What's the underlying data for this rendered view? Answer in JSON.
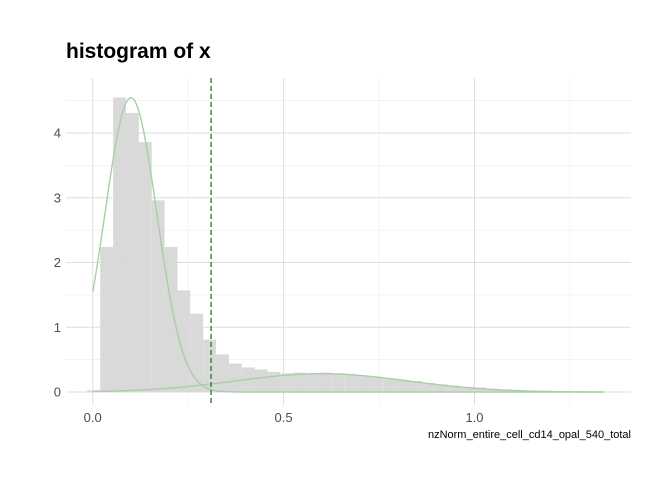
{
  "chart_data": {
    "type": "histogram",
    "title": "histogram of x",
    "xlabel": "nzNorm_entire_cell_cd14_opal_540_total",
    "ylabel": "",
    "xlim": [
      -0.07,
      1.41
    ],
    "ylim": [
      -0.2,
      4.85
    ],
    "x_ticks": [
      {
        "value": 0.0,
        "label": "0.0"
      },
      {
        "value": 0.5,
        "label": "0.5"
      },
      {
        "value": 1.0,
        "label": "1.0"
      }
    ],
    "y_ticks": [
      {
        "value": 0,
        "label": "0"
      },
      {
        "value": 1,
        "label": "1"
      },
      {
        "value": 2,
        "label": "2"
      },
      {
        "value": 3,
        "label": "3"
      },
      {
        "value": 4,
        "label": "4"
      }
    ],
    "grid": true,
    "bin_width": 0.0337,
    "bins": [
      {
        "x0": -0.014,
        "height": 0.03
      },
      {
        "x0": 0.0197,
        "height": 2.24
      },
      {
        "x0": 0.0534,
        "height": 4.55
      },
      {
        "x0": 0.0871,
        "height": 4.31
      },
      {
        "x0": 0.1208,
        "height": 3.86
      },
      {
        "x0": 0.1545,
        "height": 2.96
      },
      {
        "x0": 0.1882,
        "height": 2.24
      },
      {
        "x0": 0.2219,
        "height": 1.57
      },
      {
        "x0": 0.2556,
        "height": 1.21
      },
      {
        "x0": 0.2893,
        "height": 0.81
      },
      {
        "x0": 0.323,
        "height": 0.58
      },
      {
        "x0": 0.3567,
        "height": 0.44
      },
      {
        "x0": 0.3904,
        "height": 0.38
      },
      {
        "x0": 0.4241,
        "height": 0.35
      },
      {
        "x0": 0.4578,
        "height": 0.31
      },
      {
        "x0": 0.4915,
        "height": 0.29
      },
      {
        "x0": 0.5252,
        "height": 0.3
      },
      {
        "x0": 0.5589,
        "height": 0.28
      },
      {
        "x0": 0.5926,
        "height": 0.3
      },
      {
        "x0": 0.6263,
        "height": 0.29
      },
      {
        "x0": 0.66,
        "height": 0.27
      },
      {
        "x0": 0.6937,
        "height": 0.25
      },
      {
        "x0": 0.7274,
        "height": 0.23
      },
      {
        "x0": 0.7611,
        "height": 0.2
      },
      {
        "x0": 0.7948,
        "height": 0.19
      },
      {
        "x0": 0.8285,
        "height": 0.17
      },
      {
        "x0": 0.8622,
        "height": 0.14
      },
      {
        "x0": 0.8959,
        "height": 0.12
      },
      {
        "x0": 0.9296,
        "height": 0.1
      },
      {
        "x0": 0.9633,
        "height": 0.08
      },
      {
        "x0": 0.997,
        "height": 0.07
      },
      {
        "x0": 1.0307,
        "height": 0.05
      },
      {
        "x0": 1.0644,
        "height": 0.04
      },
      {
        "x0": 1.0981,
        "height": 0.03
      },
      {
        "x0": 1.1318,
        "height": 0.02
      },
      {
        "x0": 1.1655,
        "height": 0.02
      },
      {
        "x0": 1.1992,
        "height": 0.01
      },
      {
        "x0": 1.2329,
        "height": 0.01
      },
      {
        "x0": 1.2666,
        "height": 0.01
      },
      {
        "x0": 1.3003,
        "height": 0.01
      }
    ],
    "bar_color": "#d9d9d9",
    "threshold": {
      "x": 0.31,
      "style": "dashed",
      "color": "#2e7d32"
    },
    "components": [
      {
        "mean": 0.1,
        "sd": 0.068,
        "weight": 0.775
      },
      {
        "mean": 0.6,
        "sd": 0.225,
        "weight": 0.16
      }
    ],
    "x_range_curve": [
      0.0,
      1.34
    ],
    "curve_color": "#a9cfa5"
  }
}
